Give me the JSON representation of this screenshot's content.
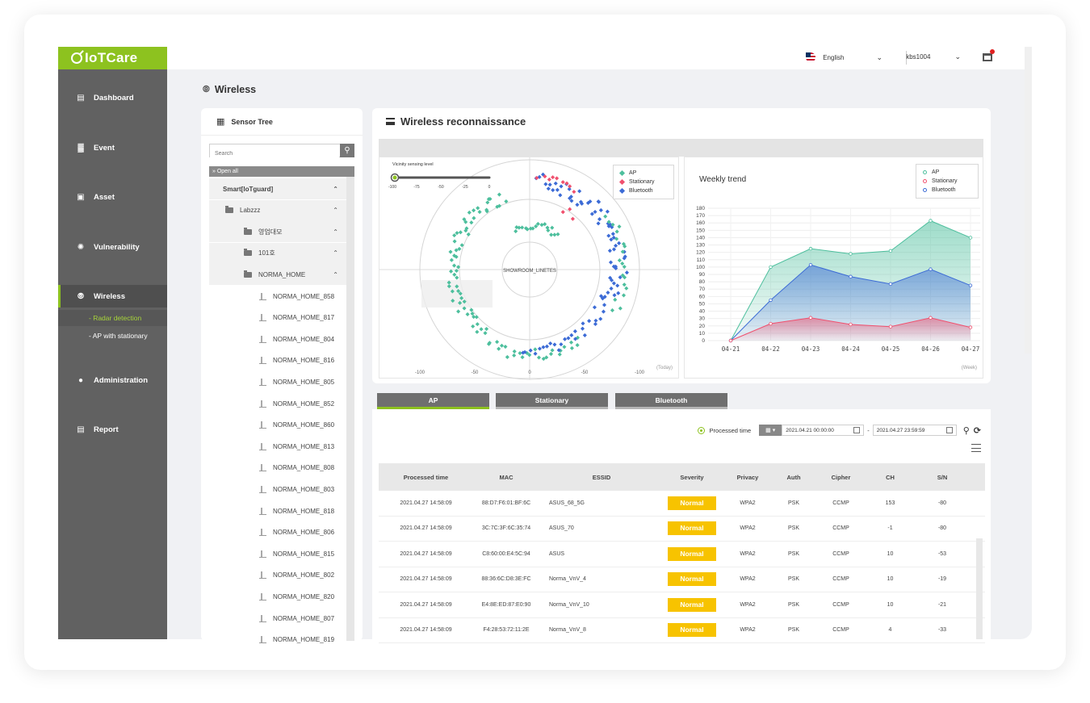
{
  "app": {
    "logo": "IoTCare"
  },
  "topbar": {
    "language": "English",
    "user": "kbs1004"
  },
  "sidebar": {
    "items": [
      {
        "label": "Dashboard",
        "icon": "chart-icon"
      },
      {
        "label": "Event",
        "icon": "bar-chart-icon"
      },
      {
        "label": "Asset",
        "icon": "monitor-icon"
      },
      {
        "label": "Vulnerability",
        "icon": "bug-icon"
      },
      {
        "label": "Wireless",
        "icon": "wireless-icon"
      },
      {
        "label": "Administration",
        "icon": "person-icon"
      },
      {
        "label": "Report",
        "icon": "document-icon"
      }
    ],
    "wireless_sub": [
      "- Radar detection",
      "- AP with stationary"
    ]
  },
  "page": {
    "title": "Wireless"
  },
  "tree": {
    "title": "Sensor Tree",
    "search_placeholder": "Search",
    "open_all": "Open all",
    "nodes": [
      {
        "label": "Smart[IoTguard]",
        "level": 0,
        "type": "root"
      },
      {
        "label": "Labzzz",
        "level": 1,
        "type": "folder"
      },
      {
        "label": "영업대모",
        "level": 2,
        "type": "folder"
      },
      {
        "label": "101호",
        "level": 2,
        "type": "folder"
      },
      {
        "label": "NORMA_HOME",
        "level": 3,
        "type": "folder"
      },
      {
        "label": "NORMA_HOME_858",
        "level": 4,
        "type": "sensor"
      },
      {
        "label": "NORMA_HOME_817",
        "level": 4,
        "type": "sensor"
      },
      {
        "label": "NORMA_HOME_804",
        "level": 4,
        "type": "sensor"
      },
      {
        "label": "NORMA_HOME_816",
        "level": 4,
        "type": "sensor"
      },
      {
        "label": "NORMA_HOME_805",
        "level": 4,
        "type": "sensor"
      },
      {
        "label": "NORMA_HOME_852",
        "level": 4,
        "type": "sensor"
      },
      {
        "label": "NORMA_HOME_860",
        "level": 4,
        "type": "sensor"
      },
      {
        "label": "NORMA_HOME_813",
        "level": 4,
        "type": "sensor"
      },
      {
        "label": "NORMA_HOME_808",
        "level": 4,
        "type": "sensor"
      },
      {
        "label": "NORMA_HOME_803",
        "level": 4,
        "type": "sensor"
      },
      {
        "label": "NORMA_HOME_818",
        "level": 4,
        "type": "sensor"
      },
      {
        "label": "NORMA_HOME_806",
        "level": 4,
        "type": "sensor"
      },
      {
        "label": "NORMA_HOME_815",
        "level": 4,
        "type": "sensor"
      },
      {
        "label": "NORMA_HOME_802",
        "level": 4,
        "type": "sensor"
      },
      {
        "label": "NORMA_HOME_820",
        "level": 4,
        "type": "sensor"
      },
      {
        "label": "NORMA_HOME_807",
        "level": 4,
        "type": "sensor"
      },
      {
        "label": "NORMA_HOME_819",
        "level": 4,
        "type": "sensor"
      }
    ]
  },
  "recon": {
    "title": "Wireless reconnaissance",
    "radar": {
      "slider_label": "Vicinity sensing level",
      "slider_ticks": [
        "-100",
        "-75",
        "-50",
        "-25",
        "0"
      ],
      "slider_value": -100,
      "center_label": "SHOWROOM_LINETES",
      "x_ticks": [
        "-100",
        "-50",
        "0",
        "-50",
        "-100"
      ],
      "unit_label": "(Today)",
      "legend": [
        "AP",
        "Stationary",
        "Bluetooth"
      ],
      "colors": {
        "AP": "#4dbf9d",
        "Stationary": "#f0506e",
        "Bluetooth": "#3c6bd6"
      }
    },
    "trend": {
      "title": "Weekly trend",
      "unit_label": "(Week)",
      "legend": [
        "AP",
        "Stationary",
        "Bluetooth"
      ]
    }
  },
  "chart_data": {
    "type": "area",
    "title": "Weekly trend",
    "categories": [
      "04-21",
      "04-22",
      "04-23",
      "04-24",
      "04-25",
      "04-26",
      "04-27"
    ],
    "ylim": [
      0,
      180
    ],
    "yticks": [
      0,
      10,
      20,
      30,
      40,
      50,
      60,
      70,
      80,
      90,
      100,
      110,
      120,
      130,
      140,
      150,
      160,
      170,
      180
    ],
    "grid": true,
    "legend_position": "top-right",
    "series": [
      {
        "name": "AP",
        "color": "#4dbf9d",
        "values": [
          0,
          100,
          125,
          118,
          122,
          163,
          140
        ]
      },
      {
        "name": "Bluetooth",
        "color": "#3c6bd6",
        "values": [
          0,
          55,
          103,
          87,
          77,
          97,
          75
        ]
      },
      {
        "name": "Stationary",
        "color": "#f0506e",
        "values": [
          0,
          23,
          31,
          22,
          19,
          31,
          18
        ]
      }
    ]
  },
  "tabs": [
    "AP",
    "Stationary",
    "Bluetooth"
  ],
  "filter": {
    "label": "Processed time",
    "from": "2021.04.21 00:00:00",
    "to": "2021.04.27 23:59:59",
    "dash": "-"
  },
  "table": {
    "headers": [
      "Processed time",
      "MAC",
      "ESSID",
      "Severity",
      "Privacy",
      "Auth",
      "Cipher",
      "CH",
      "S/N"
    ],
    "rows": [
      [
        "2021.04.27 14:58:09",
        "88:D7:F6:01:BF:6C",
        "ASUS_68_5G",
        "Normal",
        "WPA2",
        "PSK",
        "CCMP",
        "153",
        "-80"
      ],
      [
        "2021.04.27 14:58:09",
        "3C:7C:3F:6C:35:74",
        "ASUS_70",
        "Normal",
        "WPA2",
        "PSK",
        "CCMP",
        "-1",
        "-80"
      ],
      [
        "2021.04.27 14:58:09",
        "C8:60:00:E4:5C:94",
        "ASUS",
        "Normal",
        "WPA2",
        "PSK",
        "CCMP",
        "10",
        "-53"
      ],
      [
        "2021.04.27 14:58:09",
        "88:36:6C:D8:3E:FC",
        "Norma_VnV_4",
        "Normal",
        "WPA2",
        "PSK",
        "CCMP",
        "10",
        "-19"
      ],
      [
        "2021.04.27 14:58:09",
        "E4:8E:ED:87:E0:90",
        "Norma_VnV_10",
        "Normal",
        "WPA2",
        "PSK",
        "CCMP",
        "10",
        "-21"
      ],
      [
        "2021.04.27 14:58:09",
        "F4:28:53:72:11:2E",
        "Norma_VnV_8",
        "Normal",
        "WPA2",
        "PSK",
        "CCMP",
        "4",
        "-33"
      ]
    ]
  }
}
